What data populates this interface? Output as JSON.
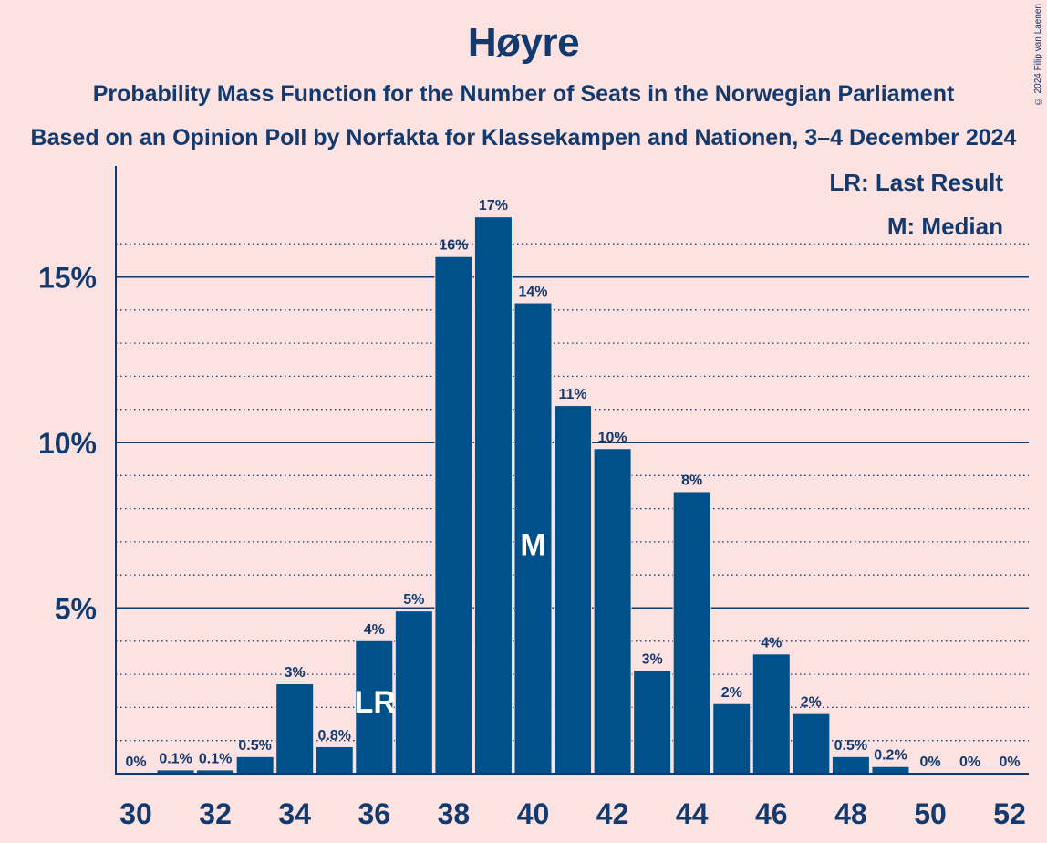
{
  "header": {
    "title": "Høyre",
    "subtitle1": "Probability Mass Function for the Number of Seats in the Norwegian Parliament",
    "subtitle2": "Based on an Opinion Poll by Norfakta for Klassekampen and Nationen, 3–4 December 2024",
    "copyright": "© 2024 Filip van Laenen"
  },
  "legend": {
    "lr": "LR: Last Result",
    "m": "M: Median"
  },
  "chart_data": {
    "type": "bar",
    "title": "Høyre",
    "x": [
      30,
      31,
      32,
      33,
      34,
      35,
      36,
      37,
      38,
      39,
      40,
      41,
      42,
      43,
      44,
      45,
      46,
      47,
      48,
      49,
      50,
      51,
      52
    ],
    "values": [
      0,
      0.1,
      0.1,
      0.5,
      2.7,
      0.8,
      4.0,
      4.9,
      15.6,
      16.8,
      14.2,
      11.1,
      9.8,
      3.1,
      8.5,
      2.1,
      3.6,
      1.8,
      0.5,
      0.2,
      0,
      0,
      0
    ],
    "labels": [
      "0%",
      "0.1%",
      "0.1%",
      "0.5%",
      "3%",
      "0.8%",
      "4%",
      "5%",
      "16%",
      "17%",
      "14%",
      "11%",
      "10%",
      "3%",
      "8%",
      "2%",
      "4%",
      "2%",
      "0.5%",
      "0.2%",
      "0%",
      "0%",
      "0%"
    ],
    "xticks": [
      30,
      32,
      34,
      36,
      38,
      40,
      42,
      44,
      46,
      48,
      50,
      52
    ],
    "yticks": [
      {
        "value": 5,
        "label": "5%"
      },
      {
        "value": 10,
        "label": "10%"
      },
      {
        "value": 15,
        "label": "15%"
      }
    ],
    "ylim": [
      0,
      18
    ],
    "minor_grid_step": 1,
    "last_result": 36,
    "median": 40,
    "lr_marker": "LR",
    "m_marker": "M",
    "bar_color": "#00508c",
    "axis_color": "#123a6e"
  }
}
